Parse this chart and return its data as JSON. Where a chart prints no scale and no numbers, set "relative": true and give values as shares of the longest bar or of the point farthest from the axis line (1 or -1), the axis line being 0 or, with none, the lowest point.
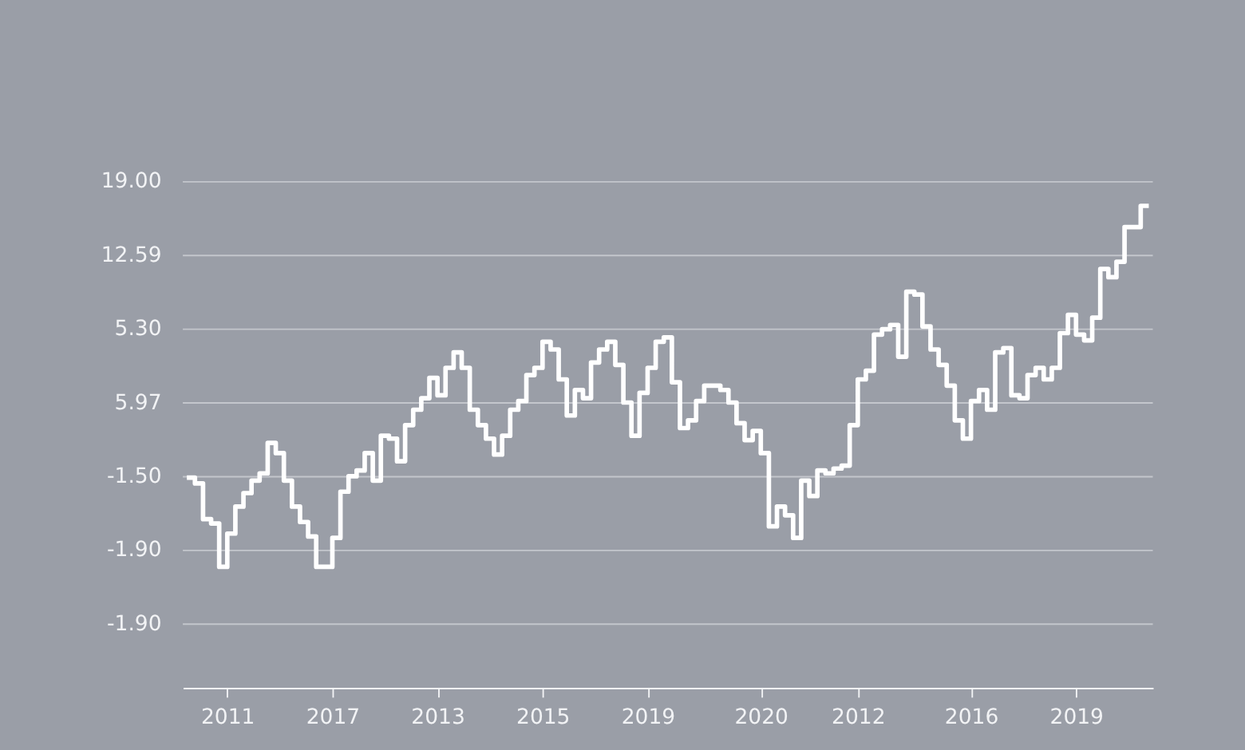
{
  "chart_data": {
    "type": "step",
    "line_style": "solid",
    "grid": "y",
    "relative": true,
    "categories": [
      null,
      null,
      null,
      null,
      null,
      "2011",
      null,
      null,
      null,
      null,
      null,
      null,
      null,
      null,
      null,
      null,
      null,
      null,
      "2017",
      null,
      null,
      null,
      null,
      null,
      null,
      null,
      null,
      null,
      null,
      null,
      null,
      "2013",
      null,
      null,
      null,
      null,
      null,
      null,
      null,
      null,
      null,
      null,
      null,
      null,
      "2015",
      null,
      null,
      null,
      null,
      null,
      null,
      null,
      null,
      null,
      null,
      null,
      null,
      "2019",
      null,
      null,
      null,
      null,
      null,
      null,
      null,
      null,
      null,
      null,
      null,
      null,
      null,
      "2020",
      null,
      null,
      null,
      null,
      null,
      null,
      null,
      null,
      null,
      null,
      null,
      "2012",
      null,
      null,
      null,
      null,
      null,
      null,
      null,
      null,
      null,
      null,
      null,
      null,
      null,
      "2016",
      null,
      null,
      null,
      null,
      null,
      null,
      null,
      null,
      null,
      null,
      null,
      null,
      "2019",
      null,
      null,
      null,
      null,
      null,
      null,
      null,
      null,
      null
    ],
    "annotations": [
      "19.00",
      "12.59",
      "5.30",
      "5.97",
      "-1.50",
      "-1.90",
      "-1.90"
    ],
    "series": [
      {
        "color": "#ffffff",
        "values": [
          0.436,
          0.424,
          0.35,
          0.341,
          0.251,
          0.32,
          0.376,
          0.404,
          0.43,
          0.445,
          0.508,
          0.487,
          0.43,
          0.376,
          0.344,
          0.314,
          0.251,
          0.251,
          0.311,
          0.407,
          0.439,
          0.451,
          0.487,
          0.43,
          0.523,
          0.517,
          0.47,
          0.545,
          0.577,
          0.601,
          0.643,
          0.607,
          0.664,
          0.696,
          0.664,
          0.577,
          0.545,
          0.517,
          0.484,
          0.523,
          0.577,
          0.595,
          0.649,
          0.664,
          0.718,
          0.702,
          0.64,
          0.565,
          0.618,
          0.601,
          0.675,
          0.702,
          0.718,
          0.67,
          0.592,
          0.523,
          0.612,
          0.664,
          0.718,
          0.727,
          0.634,
          0.539,
          0.555,
          0.595,
          0.627,
          0.627,
          0.618,
          0.592,
          0.549,
          0.514,
          0.533,
          0.487,
          0.335,
          0.376,
          0.358,
          0.311,
          0.43,
          0.398,
          0.451,
          0.445,
          0.455,
          0.461,
          0.545,
          0.64,
          0.658,
          0.733,
          0.744,
          0.753,
          0.687,
          0.822,
          0.816,
          0.75,
          0.702,
          0.67,
          0.627,
          0.555,
          0.517,
          0.595,
          0.618,
          0.577,
          0.696,
          0.705,
          0.607,
          0.601,
          0.649,
          0.664,
          0.64,
          0.664,
          0.736,
          0.774,
          0.733,
          0.721,
          0.768,
          0.869,
          0.852,
          0.884,
          0.956,
          0.956,
          1.0,
          1.0
        ]
      }
    ]
  }
}
